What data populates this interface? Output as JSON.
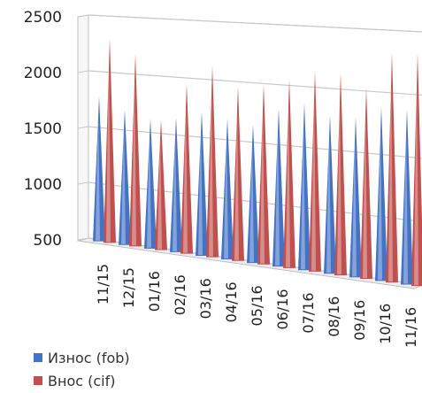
{
  "chart_data": {
    "type": "bar",
    "categories": [
      "11/15",
      "12/15",
      "01/16",
      "02/16",
      "03/16",
      "04/16",
      "05/16",
      "06/16",
      "07/16",
      "08/16",
      "09/16",
      "10/16",
      "11/16"
    ],
    "series": [
      {
        "name": "Износ (fob)",
        "color": "#4472C4",
        "values": [
          1780,
          1680,
          1620,
          1650,
          1720,
          1680,
          1650,
          1800,
          1860,
          1780,
          1780,
          1880,
          1880
        ]
      },
      {
        "name": "Внос (cif)",
        "color": "#C0504D",
        "values": [
          2300,
          2180,
          1620,
          1950,
          2120,
          1960,
          1990,
          2050,
          2130,
          2130,
          2020,
          2320,
          2330
        ]
      }
    ],
    "yticks": [
      "500",
      "1000",
      "1500",
      "2000",
      "2500"
    ],
    "ylim": [
      500,
      2500
    ],
    "grid": true,
    "legend_position": "bottom-left",
    "style": "3d-cone"
  },
  "legend": {
    "items": [
      {
        "label": "Износ (fob)",
        "color": "#4472C4"
      },
      {
        "label": "Внос (cif)",
        "color": "#C0504D"
      }
    ]
  }
}
